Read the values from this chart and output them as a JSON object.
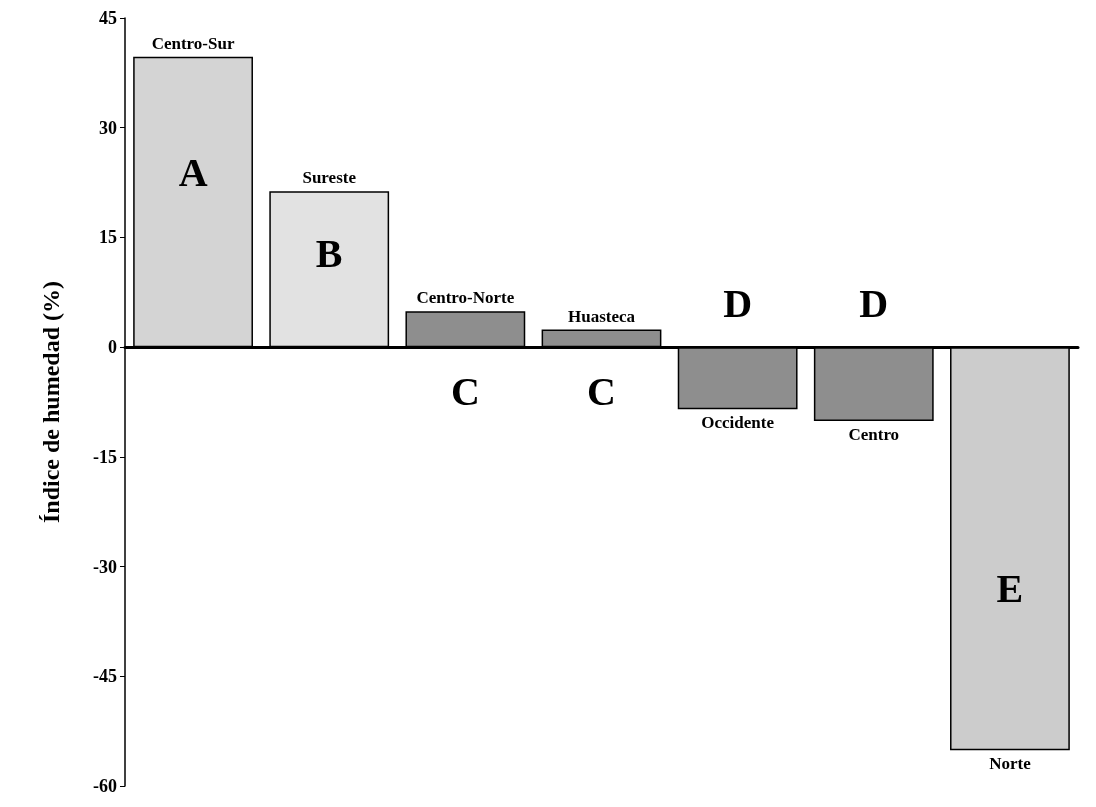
{
  "chart_data": {
    "type": "bar",
    "ylabel": "Índice de humedad (%)",
    "categories": [
      "Centro-Sur",
      "Sureste",
      "Centro-Norte",
      "Huasteca",
      "Occidente",
      "Centro",
      "Norte"
    ],
    "values": [
      39.7,
      21.3,
      4.9,
      2.4,
      -8.5,
      -10.1,
      -55.1
    ],
    "colors": [
      "#d4d4d4",
      "#e2e2e2",
      "#8e8e8e",
      "#8e8e8e",
      "#8e8e8e",
      "#8e8e8e",
      "#cccccc"
    ],
    "ylim": [
      -60,
      45
    ],
    "yticks": [
      -60,
      -45,
      -30,
      -15,
      0,
      15,
      30,
      45
    ],
    "tick_labels": "y",
    "annotations": [
      "A",
      "B",
      "C",
      "C",
      "D",
      "D",
      "E"
    ]
  }
}
